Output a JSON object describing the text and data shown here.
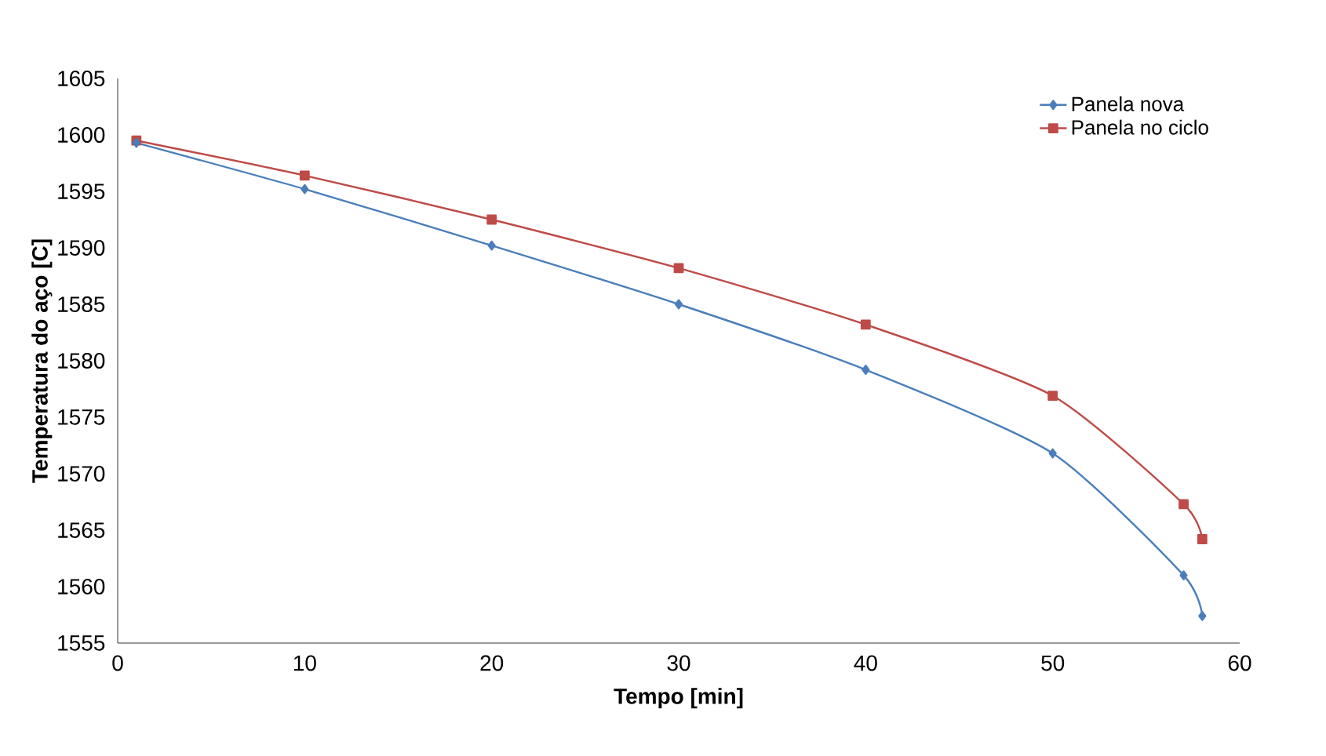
{
  "chart_data": {
    "type": "line",
    "xlabel": "Tempo [min]",
    "ylabel": "Temperatura do aço [C]",
    "xlim": [
      0,
      60
    ],
    "xticks": [
      0,
      10,
      20,
      30,
      40,
      50,
      60
    ],
    "ylim": [
      1555,
      1605
    ],
    "yticks": [
      1555,
      1560,
      1565,
      1570,
      1575,
      1580,
      1585,
      1590,
      1595,
      1600,
      1605
    ],
    "grid": false,
    "legend": "top right",
    "x": [
      1,
      10,
      20,
      30,
      40,
      50,
      57,
      58
    ],
    "series": [
      {
        "name": "Panela nova",
        "color": "#4a7ebb",
        "marker": "diamond",
        "values": [
          1599.3,
          1595.2,
          1590.2,
          1585.0,
          1579.2,
          1571.8,
          1561.0,
          1557.4
        ]
      },
      {
        "name": "Panela no ciclo",
        "color": "#be4b48",
        "marker": "square",
        "values": [
          1599.5,
          1596.4,
          1592.5,
          1588.2,
          1583.2,
          1576.9,
          1567.3,
          1564.2
        ]
      }
    ]
  }
}
